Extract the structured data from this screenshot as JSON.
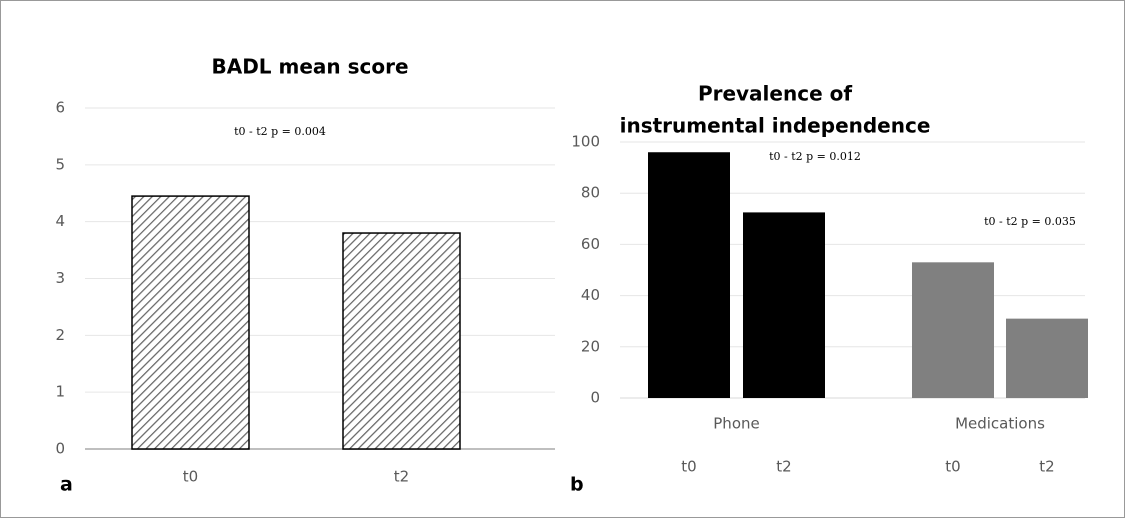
{
  "chart_data": [
    {
      "type": "bar",
      "title": "BADL mean score",
      "panel_label": "a",
      "categories": [
        "t0",
        "t2"
      ],
      "values": [
        4.45,
        3.8
      ],
      "fill": "hatch",
      "color": "#000000",
      "ylim": [
        0,
        6
      ],
      "yticks": [
        0,
        1,
        2,
        3,
        4,
        5,
        6
      ],
      "grid": true,
      "annotations": [
        "t0 - t2 p = 0.004"
      ]
    },
    {
      "type": "grouped_bar",
      "title": [
        "Prevalence of",
        "instrumental independence"
      ],
      "panel_label": "b",
      "categories": [
        "Phone",
        "Medications"
      ],
      "subcategories": [
        [
          "t0",
          "t2"
        ],
        [
          "t0",
          "t2"
        ]
      ],
      "values": [
        [
          96,
          72.5
        ],
        [
          53,
          31
        ]
      ],
      "colors": [
        "#000000",
        "#808080"
      ],
      "ylim": [
        0,
        100
      ],
      "yticks": [
        0,
        20,
        40,
        60,
        80,
        100
      ],
      "grid": true,
      "annotations": [
        "t0 - t2 p = 0.012",
        "t0 - t2 p = 0.035"
      ]
    }
  ]
}
